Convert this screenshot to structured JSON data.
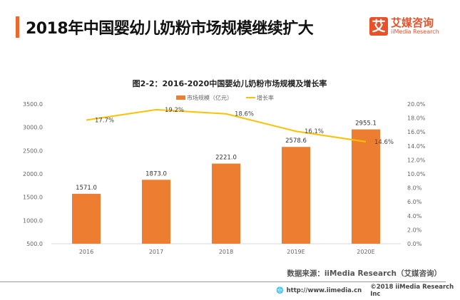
{
  "header": {
    "title": "2018年中国婴幼儿奶粉市场规模继续扩大",
    "logo_mark": "艾",
    "logo_cn": "艾媒咨询",
    "logo_en": "iiMedia Research"
  },
  "chart_data": {
    "type": "bar",
    "title": "图2-2：2016-2020中国婴幼儿奶粉市场规模及增长率",
    "categories": [
      "2016",
      "2017",
      "2018",
      "2019E",
      "2020E"
    ],
    "series": [
      {
        "name": "市场规模（亿元）",
        "type": "bar",
        "axis": "left",
        "color": "#ed7d31",
        "values": [
          1571.0,
          1873.0,
          2221.0,
          2578.6,
          2955.1
        ],
        "labels": [
          "1571.0",
          "1873.0",
          "2221.0",
          "2578.6",
          "2955.1"
        ]
      },
      {
        "name": "增长率",
        "type": "line",
        "axis": "right",
        "color": "#ffc000",
        "values": [
          17.7,
          19.2,
          18.6,
          16.1,
          14.6
        ],
        "labels": [
          "17.7%",
          "19.2%",
          "18.6%",
          "16.1%",
          "14.6%"
        ]
      }
    ],
    "left_axis": {
      "ylim": [
        500,
        3500
      ],
      "ticks": [
        "500.0",
        "1000.0",
        "1500.0",
        "2000.0",
        "2500.0",
        "3000.0",
        "3500.0"
      ]
    },
    "right_axis": {
      "ylim": [
        0,
        20
      ],
      "ticks": [
        "0.0%",
        "2.0%",
        "4.0%",
        "6.0%",
        "8.0%",
        "10.0%",
        "12.0%",
        "14.0%",
        "16.0%",
        "18.0%",
        "20.0%"
      ]
    },
    "grid": false,
    "legend_position": "top"
  },
  "footer": {
    "source": "数据来源：iiMedia Research（艾媒咨询）",
    "url": "http://www.iimedia.cn",
    "copyright": "©2018  iiMedia Research  Inc"
  }
}
